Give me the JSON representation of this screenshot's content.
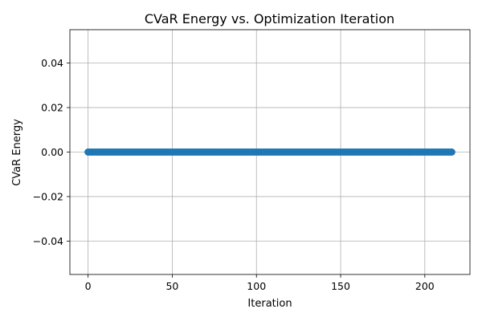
{
  "chart_data": {
    "type": "line",
    "title": "CVaR Energy vs. Optimization Iteration",
    "xlabel": "Iteration",
    "ylabel": "CVaR Energy",
    "xlim": [
      -10.8,
      226.8
    ],
    "ylim": [
      -0.055,
      0.055
    ],
    "xticks": [
      0,
      50,
      100,
      150,
      200
    ],
    "xtick_labels": [
      "0",
      "50",
      "100",
      "150",
      "200"
    ],
    "yticks": [
      -0.04,
      -0.02,
      0.0,
      0.02,
      0.04
    ],
    "ytick_labels": [
      "−0.04",
      "−0.02",
      "0.00",
      "0.02",
      "0.04"
    ],
    "grid": true,
    "series": [
      {
        "color": "#1f77b4",
        "marker": "o",
        "x_start": 0,
        "x_end": 216,
        "x_step": 1,
        "y_constant": 0.0
      }
    ]
  }
}
